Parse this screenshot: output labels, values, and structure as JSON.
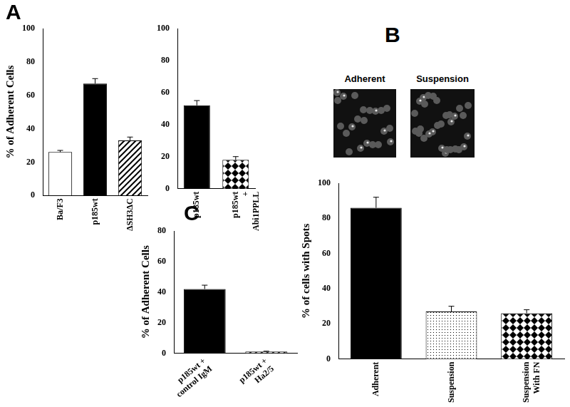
{
  "chart_data": [
    {
      "type": "bar",
      "annotations": [
        "A"
      ],
      "ylabel": "% of Adherent Cells",
      "categories": [
        "Ba/F3",
        "p185wt",
        "ΔSH3ΔC"
      ],
      "values": [
        26,
        67,
        33
      ],
      "errors": [
        1,
        3,
        2
      ],
      "colors": [
        "#ffffff",
        "#000000",
        "#ffffff"
      ],
      "marker": [
        "none",
        "none",
        "hatch"
      ],
      "ylim": [
        0,
        100
      ],
      "yticks": [
        0,
        20,
        40,
        60,
        80,
        100
      ],
      "grid": false
    },
    {
      "type": "bar",
      "categories": [
        "p185wt",
        [
          "p185wt",
          "+",
          "Abi1PPLL"
        ]
      ],
      "values": [
        52,
        18
      ],
      "errors": [
        3,
        2
      ],
      "colors": [
        "#000000",
        "#ffffff"
      ],
      "marker": [
        "none",
        "diamond"
      ],
      "ylim": [
        0,
        100
      ],
      "yticks": [
        0,
        20,
        40,
        60,
        80,
        100
      ],
      "grid": false
    },
    {
      "type": "bar",
      "annotations": [
        "C"
      ],
      "ylabel": "% of Adherent Cells",
      "categories": [
        [
          "p185wt +",
          "control IgM"
        ],
        [
          "p185wt +",
          "Ha2/5"
        ]
      ],
      "values": [
        42,
        1
      ],
      "errors": [
        2.5,
        0.3
      ],
      "colors": [
        "#000000",
        "#ffffff"
      ],
      "marker": [
        "none",
        "hatch"
      ],
      "ylim": [
        0,
        80
      ],
      "yticks": [
        0,
        20,
        40,
        60,
        80
      ],
      "grid": false
    },
    {
      "type": "bar",
      "annotations": [
        "B"
      ],
      "ylabel": "% of cells with Spots",
      "categories": [
        "Adherent",
        "Suspension",
        [
          "Suspension",
          "With FN"
        ]
      ],
      "values": [
        86,
        27,
        26
      ],
      "errors": [
        6,
        3,
        2
      ],
      "colors": [
        "#000000",
        "#ffffff",
        "#ffffff"
      ],
      "marker": [
        "none",
        "dots",
        "diamond"
      ],
      "ylim": [
        0,
        100
      ],
      "yticks": [
        0,
        20,
        40,
        60,
        80,
        100
      ],
      "grid": false
    }
  ],
  "micrographs": [
    "Adherent",
    "Suspension"
  ]
}
